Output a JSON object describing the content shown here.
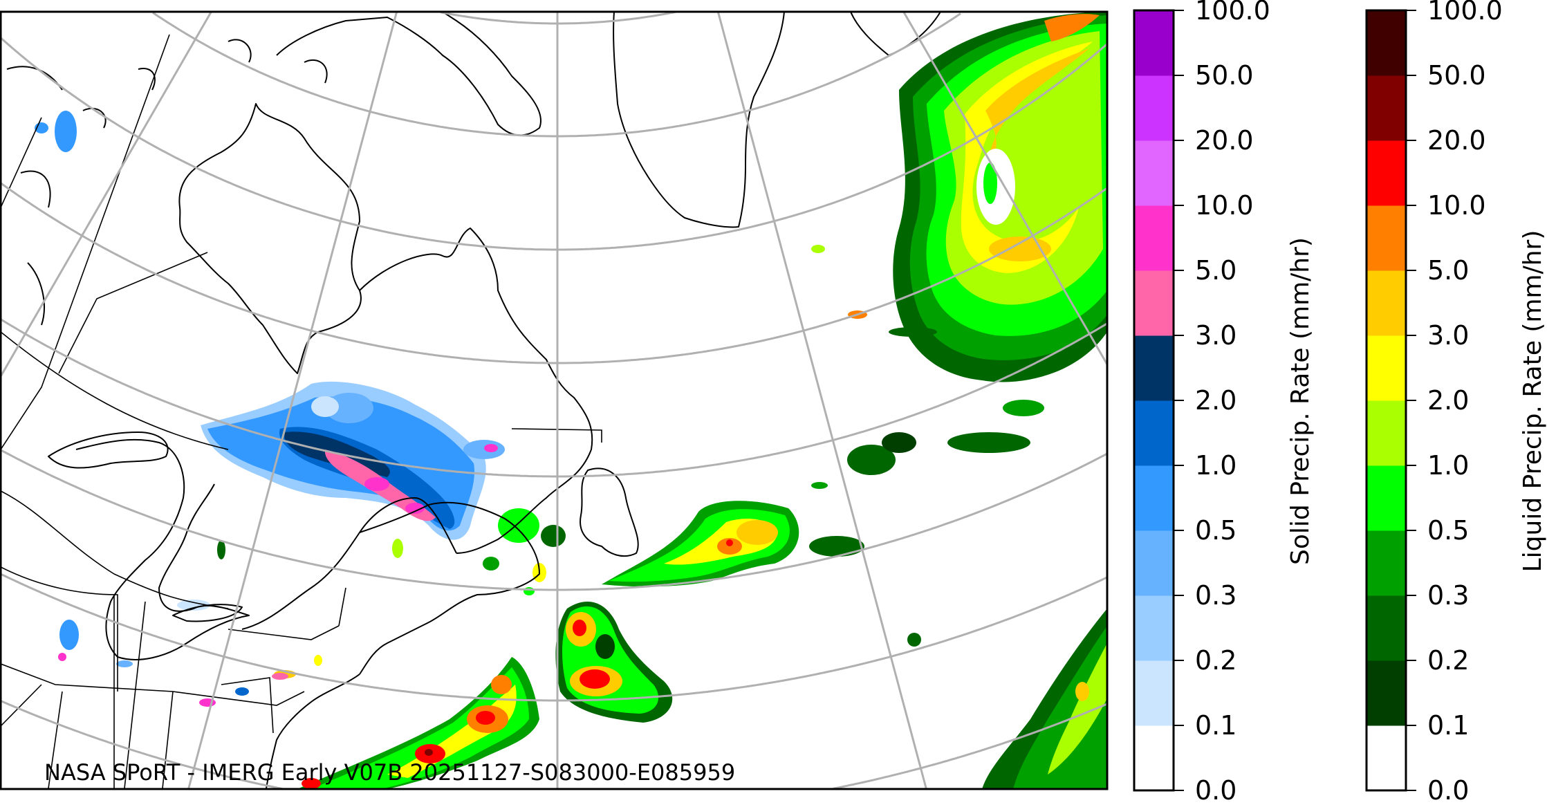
{
  "map": {
    "caption": "NASA SPoRT - IMERG Early V07B 20251127-S083000-E085959",
    "region": "Northeastern North America / North Atlantic",
    "gridlines": true
  },
  "legend": {
    "solid": {
      "title": "Solid Precip. Rate (mm/hr)",
      "ticks": [
        "0.0",
        "0.1",
        "0.2",
        "0.3",
        "0.5",
        "1.0",
        "2.0",
        "3.0",
        "5.0",
        "10.0",
        "20.0",
        "50.0",
        "100.0"
      ],
      "colors": [
        "#ffffff",
        "#cce5ff",
        "#99ccff",
        "#66b2ff",
        "#3399ff",
        "#0066cc",
        "#003366",
        "#ff66aa",
        "#ff33cc",
        "#e066ff",
        "#cc33ff",
        "#9900cc"
      ]
    },
    "liquid": {
      "title": "Liquid Precip. Rate (mm/hr)",
      "ticks": [
        "0.0",
        "0.1",
        "0.2",
        "0.3",
        "0.5",
        "1.0",
        "2.0",
        "3.0",
        "5.0",
        "10.0",
        "20.0",
        "50.0",
        "100.0"
      ],
      "colors": [
        "#ffffff",
        "#003f00",
        "#006600",
        "#00a000",
        "#00ff00",
        "#aaff00",
        "#ffff00",
        "#ffcc00",
        "#ff8000",
        "#ff0000",
        "#800000",
        "#400000"
      ]
    }
  }
}
